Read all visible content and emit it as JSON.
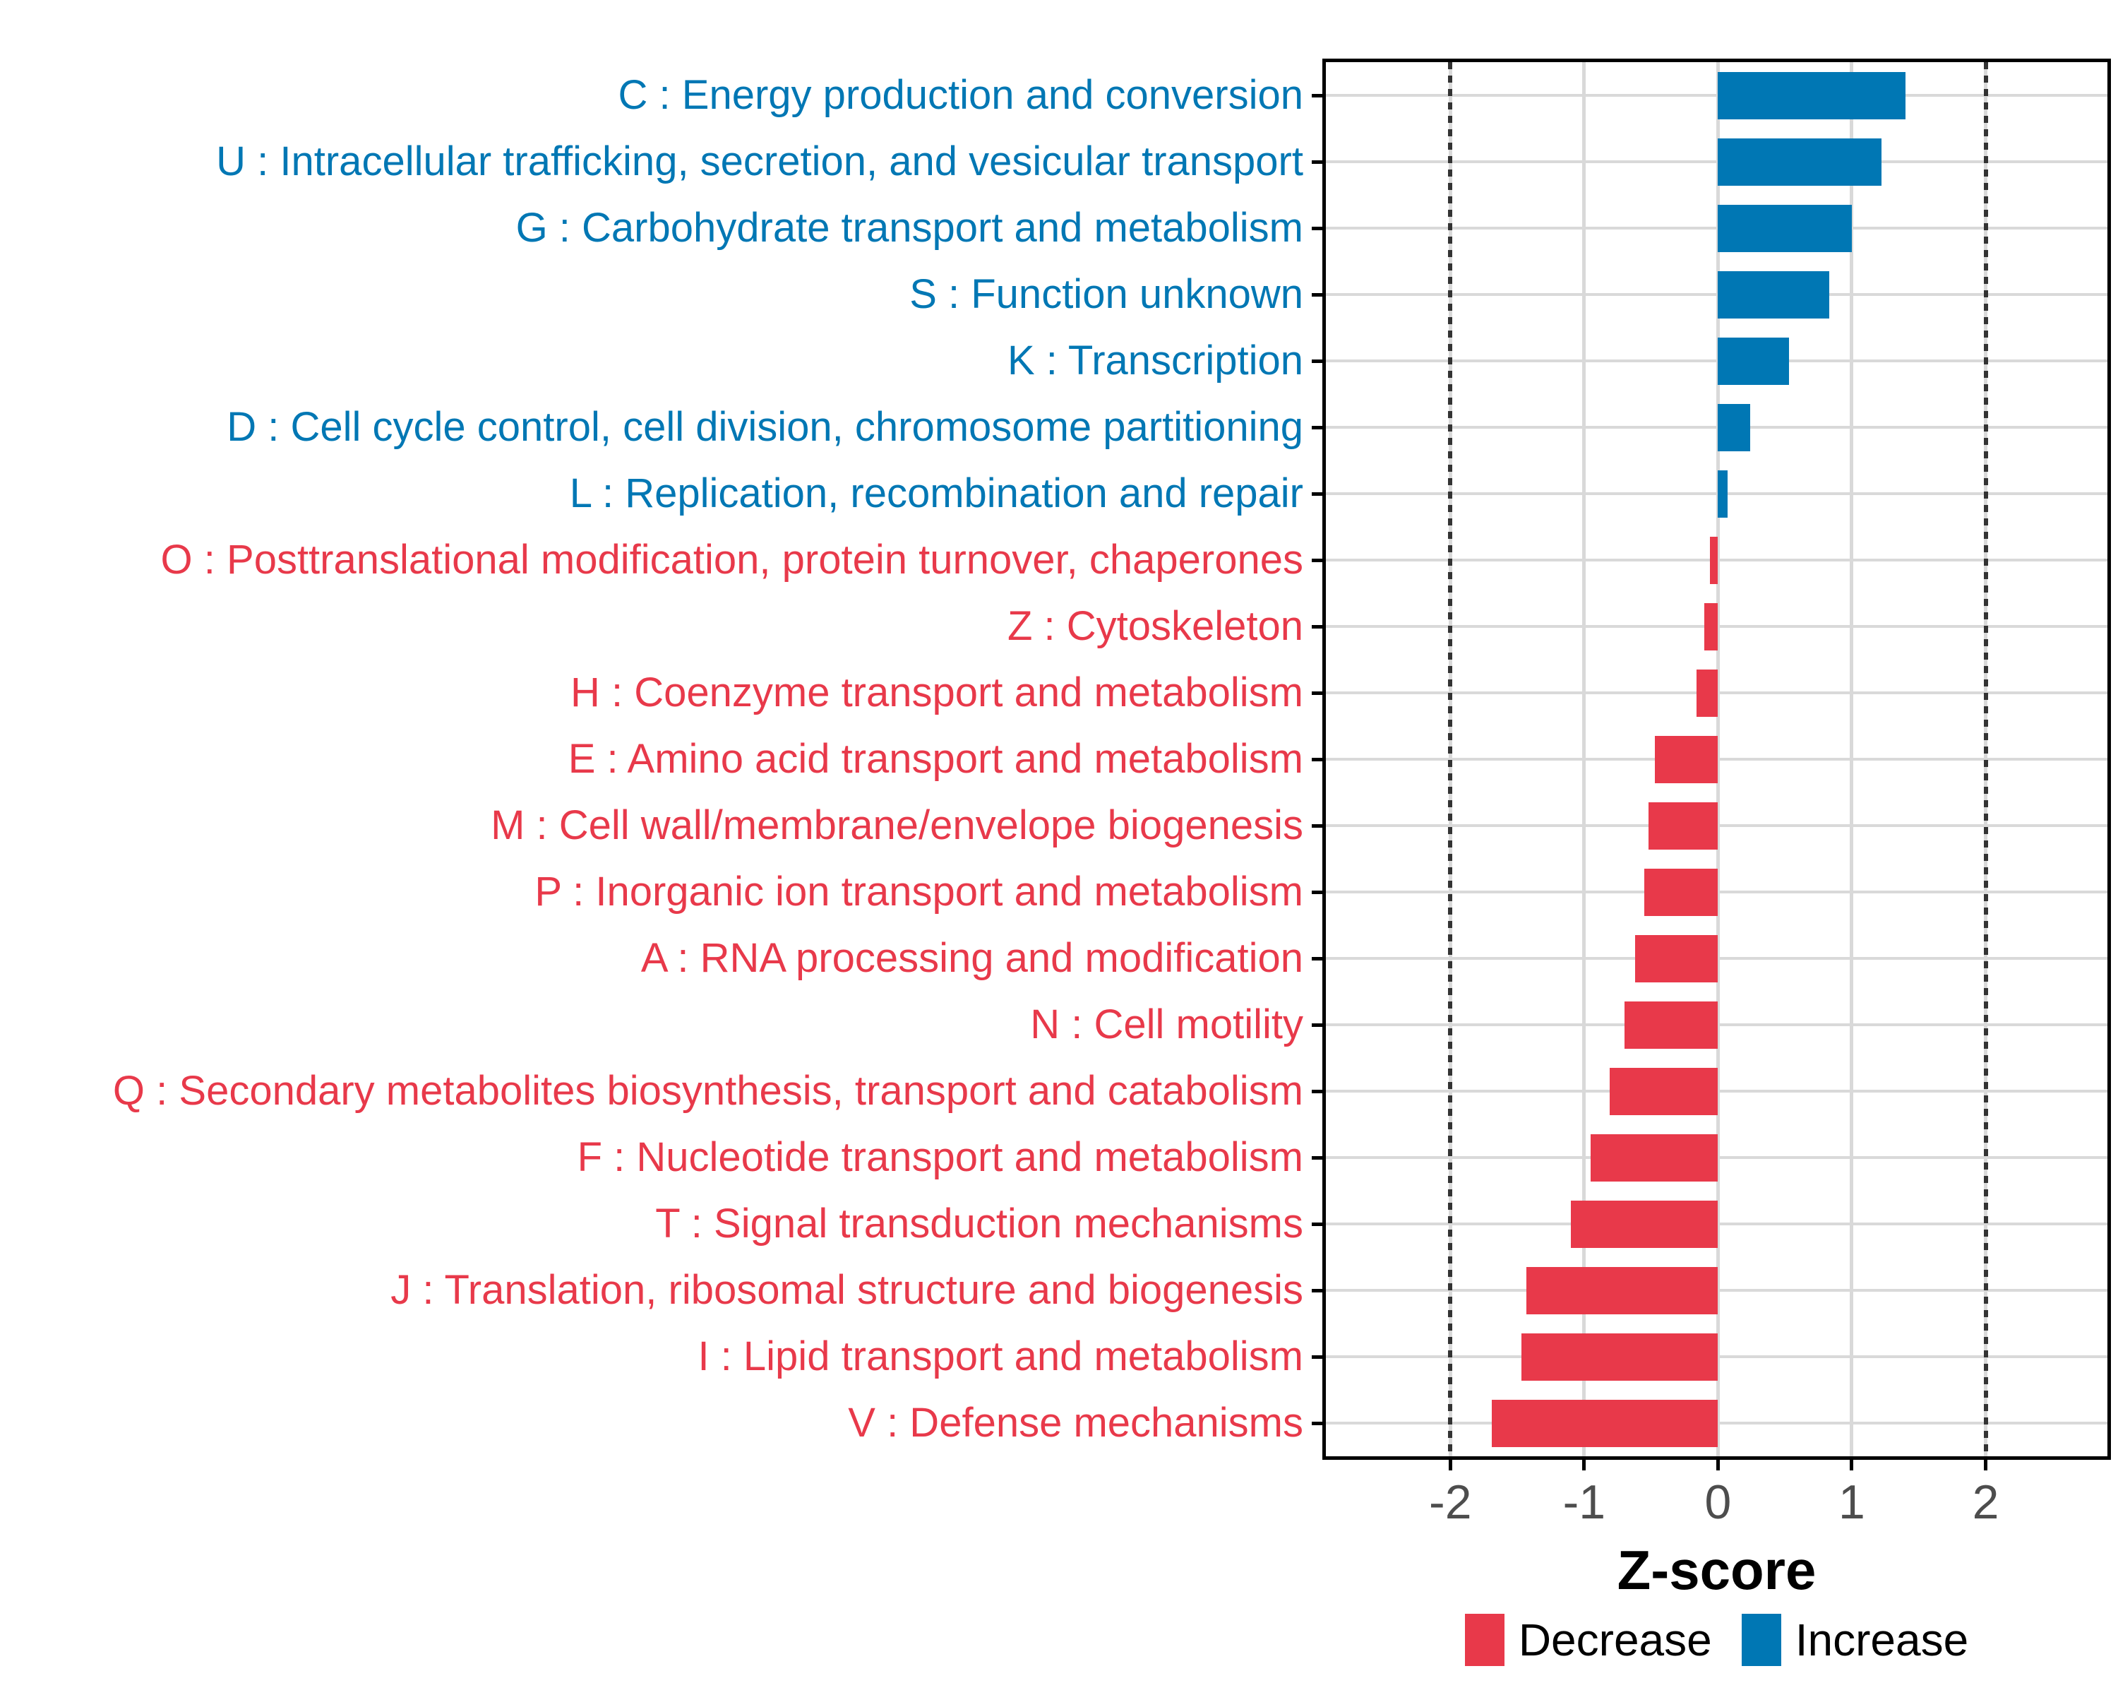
{
  "chart_data": {
    "type": "bar",
    "orientation": "horizontal",
    "title": "",
    "categories": [
      "C : Energy production and conversion",
      "U : Intracellular trafficking, secretion, and vesicular transport",
      "G : Carbohydrate transport and metabolism",
      "S : Function unknown",
      "K : Transcription",
      "D : Cell cycle control, cell division, chromosome partitioning",
      "L : Replication, recombination and repair",
      "O : Posttranslational modification, protein turnover, chaperones",
      "Z : Cytoskeleton",
      "H : Coenzyme transport and metabolism",
      "E : Amino acid transport and metabolism",
      "M : Cell wall/membrane/envelope biogenesis",
      "P : Inorganic ion transport and metabolism",
      "A : RNA processing and modification",
      "N : Cell motility",
      "Q : Secondary metabolites biosynthesis, transport and catabolism",
      "F : Nucleotide transport and metabolism",
      "T : Signal transduction mechanisms",
      "J : Translation, ribosomal structure and biogenesis",
      "I : Lipid transport and metabolism",
      "V : Defense mechanisms"
    ],
    "values": [
      1.4,
      1.22,
      1.0,
      0.83,
      0.53,
      0.24,
      0.07,
      -0.06,
      -0.1,
      -0.16,
      -0.47,
      -0.52,
      -0.55,
      -0.62,
      -0.7,
      -0.81,
      -0.95,
      -1.1,
      -1.43,
      -1.47,
      -1.69
    ],
    "groups": [
      "Increase",
      "Increase",
      "Increase",
      "Increase",
      "Increase",
      "Increase",
      "Increase",
      "Decrease",
      "Decrease",
      "Decrease",
      "Decrease",
      "Decrease",
      "Decrease",
      "Decrease",
      "Decrease",
      "Decrease",
      "Decrease",
      "Decrease",
      "Decrease",
      "Decrease",
      "Decrease"
    ],
    "x_axis": {
      "label": "Z-score",
      "ticks": [
        -2,
        -1,
        0,
        1,
        2
      ],
      "tick_labels": [
        "-2",
        "-1",
        "0",
        "1",
        "2"
      ],
      "range": [
        -2.93,
        2.91
      ]
    },
    "threshold_lines": [
      -2,
      2
    ],
    "grid": true,
    "legend_position": "bottom",
    "colors": {
      "Increase": "#0077B4",
      "Decrease": "#E8394A",
      "gridline": "#D9D9D9",
      "threshold_dash": "#333333",
      "axis_text": "#4D4D4D",
      "panel_border": "#000000"
    }
  },
  "legend": {
    "items": [
      {
        "label": "Decrease",
        "color": "#E8394A"
      },
      {
        "label": "Increase",
        "color": "#0077B4"
      }
    ]
  }
}
